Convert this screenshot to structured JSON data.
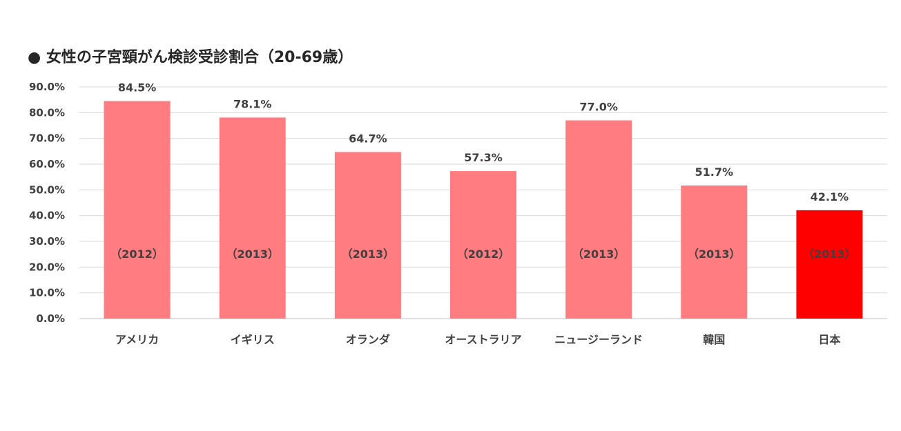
{
  "chart_data": {
    "type": "bar",
    "title": "● 女性の子宮頸がん検診受診割合（20-69歳）",
    "categories": [
      "アメリカ",
      "イギリス",
      "オランダ",
      "オーストラリア",
      "ニュージーランド",
      "韓国",
      "日本"
    ],
    "values": [
      84.5,
      78.1,
      64.7,
      57.3,
      77.0,
      51.7,
      42.1
    ],
    "data_labels": [
      "84.5%",
      "78.1%",
      "64.7%",
      "57.3%",
      "77.0%",
      "51.7%",
      "42.1%"
    ],
    "bar_annotations": [
      "（2012）",
      "（2013）",
      "（2013）",
      "（2012）",
      "（2013）",
      "（2013）",
      "（2013）"
    ],
    "ylim": [
      0,
      90
    ],
    "yticks": [
      "0.0%",
      "10.0%",
      "20.0%",
      "30.0%",
      "40.0%",
      "50.0%",
      "60.0%",
      "70.0%",
      "80.0%",
      "90.0%"
    ],
    "grid": true,
    "legend": "none",
    "colors": {
      "default": "#FF7C80",
      "highlight": "#FF0000",
      "highlight_category": "日本"
    },
    "xlabel": "",
    "ylabel": ""
  }
}
